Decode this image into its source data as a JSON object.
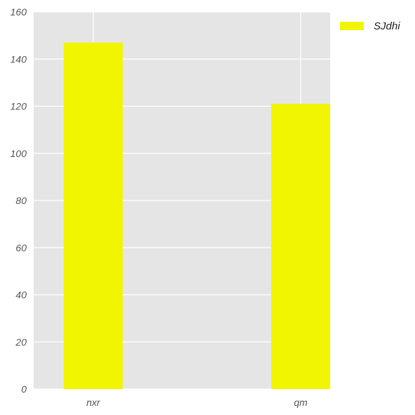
{
  "chart_data": {
    "type": "bar",
    "categories": [
      "nxr",
      "qm"
    ],
    "series": [
      {
        "name": "SJdhi",
        "values": [
          147,
          121
        ],
        "color": "#f2f500"
      }
    ],
    "title": "",
    "xlabel": "",
    "ylabel": "",
    "ylim": [
      0,
      160
    ],
    "yticks": [
      0,
      20,
      40,
      60,
      80,
      100,
      120,
      140,
      160
    ],
    "grid": true,
    "legend_position": "outside-top-right",
    "background_color": "#e5e5e5",
    "grid_color": "#ffffff"
  }
}
